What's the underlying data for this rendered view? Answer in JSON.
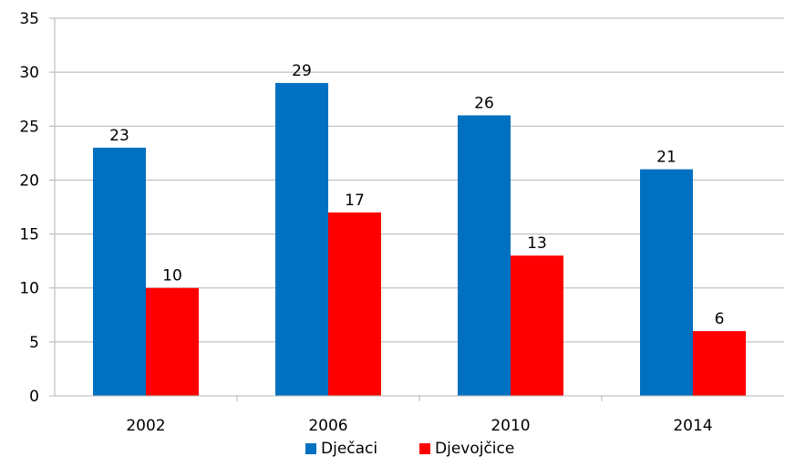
{
  "chart_data": {
    "type": "bar",
    "title": "",
    "xlabel": "",
    "ylabel": "",
    "categories": [
      "2002",
      "2006",
      "2010",
      "2014"
    ],
    "series": [
      {
        "name": "Dječaci",
        "values": [
          23,
          29,
          26,
          21
        ],
        "labels": [
          "23",
          "29",
          "26",
          "21"
        ],
        "color": "#0070c0"
      },
      {
        "name": "Djevojčice",
        "values": [
          10,
          17,
          13,
          6
        ],
        "labels": [
          "10",
          "17",
          "13",
          "6"
        ],
        "color": "#ff0000"
      }
    ],
    "ylim": [
      0,
      35
    ],
    "yticks": [
      "0",
      "5",
      "10",
      "15",
      "20",
      "25",
      "30",
      "35"
    ],
    "grid": true,
    "legend_position": "bottom"
  }
}
